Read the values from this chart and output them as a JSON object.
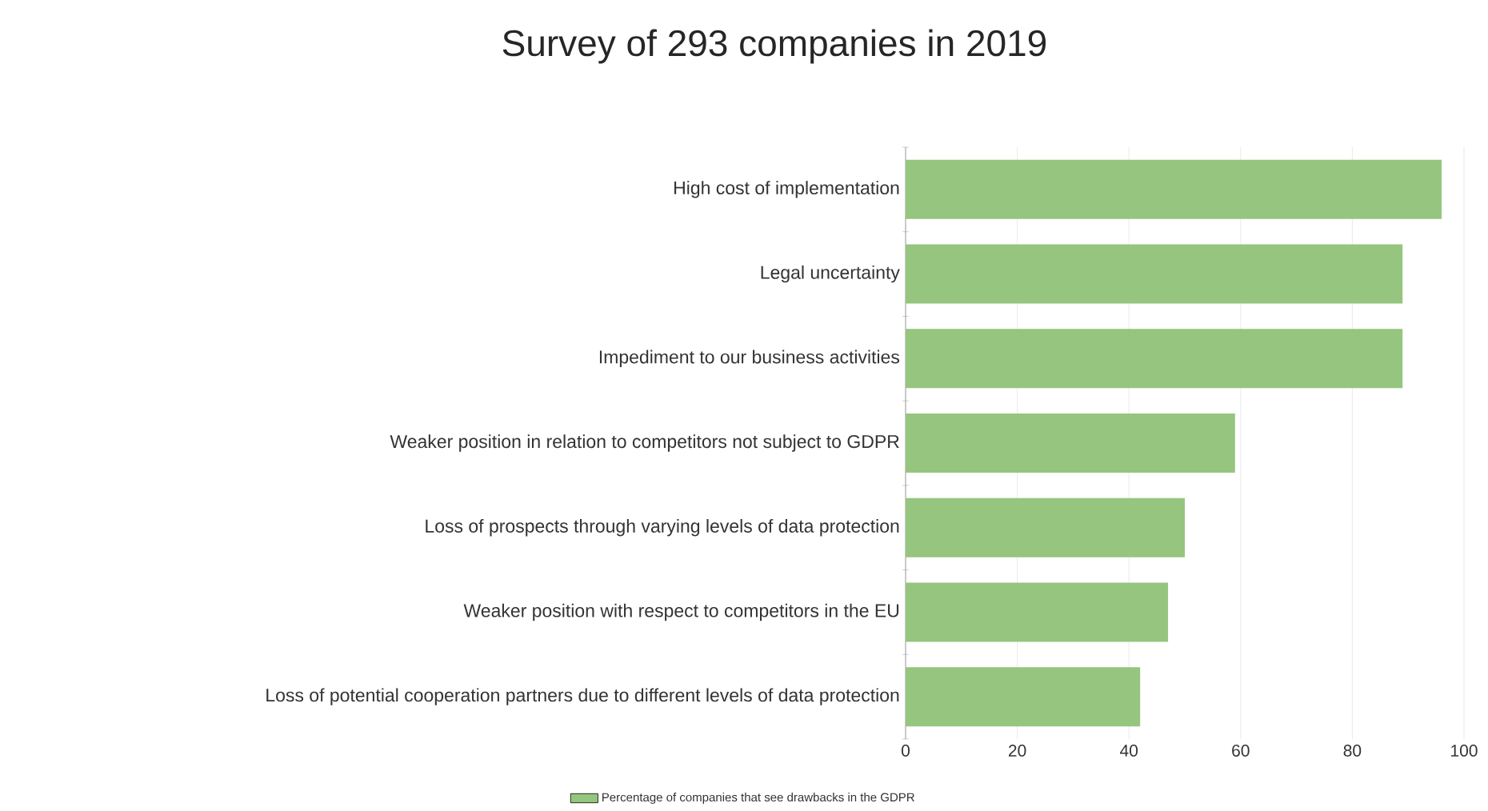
{
  "chart_data": {
    "type": "bar",
    "orientation": "horizontal",
    "title": "Survey of 293 companies in 2019",
    "categories": [
      "High cost of implementation",
      "Legal uncertainty",
      "Impediment to our business activities",
      "Weaker position in relation to competitors not subject to GDPR",
      "Loss of prospects through varying levels of data protection",
      "Weaker position with respect to competitors in the EU",
      "Loss of potential cooperation partners due to different levels of data protection"
    ],
    "series": [
      {
        "name": "Percentage of companies that see drawbacks in the GDPR",
        "color": "#95c57e",
        "values": [
          96,
          89,
          89,
          59,
          50,
          47,
          42
        ]
      }
    ],
    "xlim": [
      0,
      100
    ],
    "xticks": [
      0,
      20,
      40,
      60,
      80,
      100
    ],
    "grid": "x",
    "legend": "bottom"
  }
}
